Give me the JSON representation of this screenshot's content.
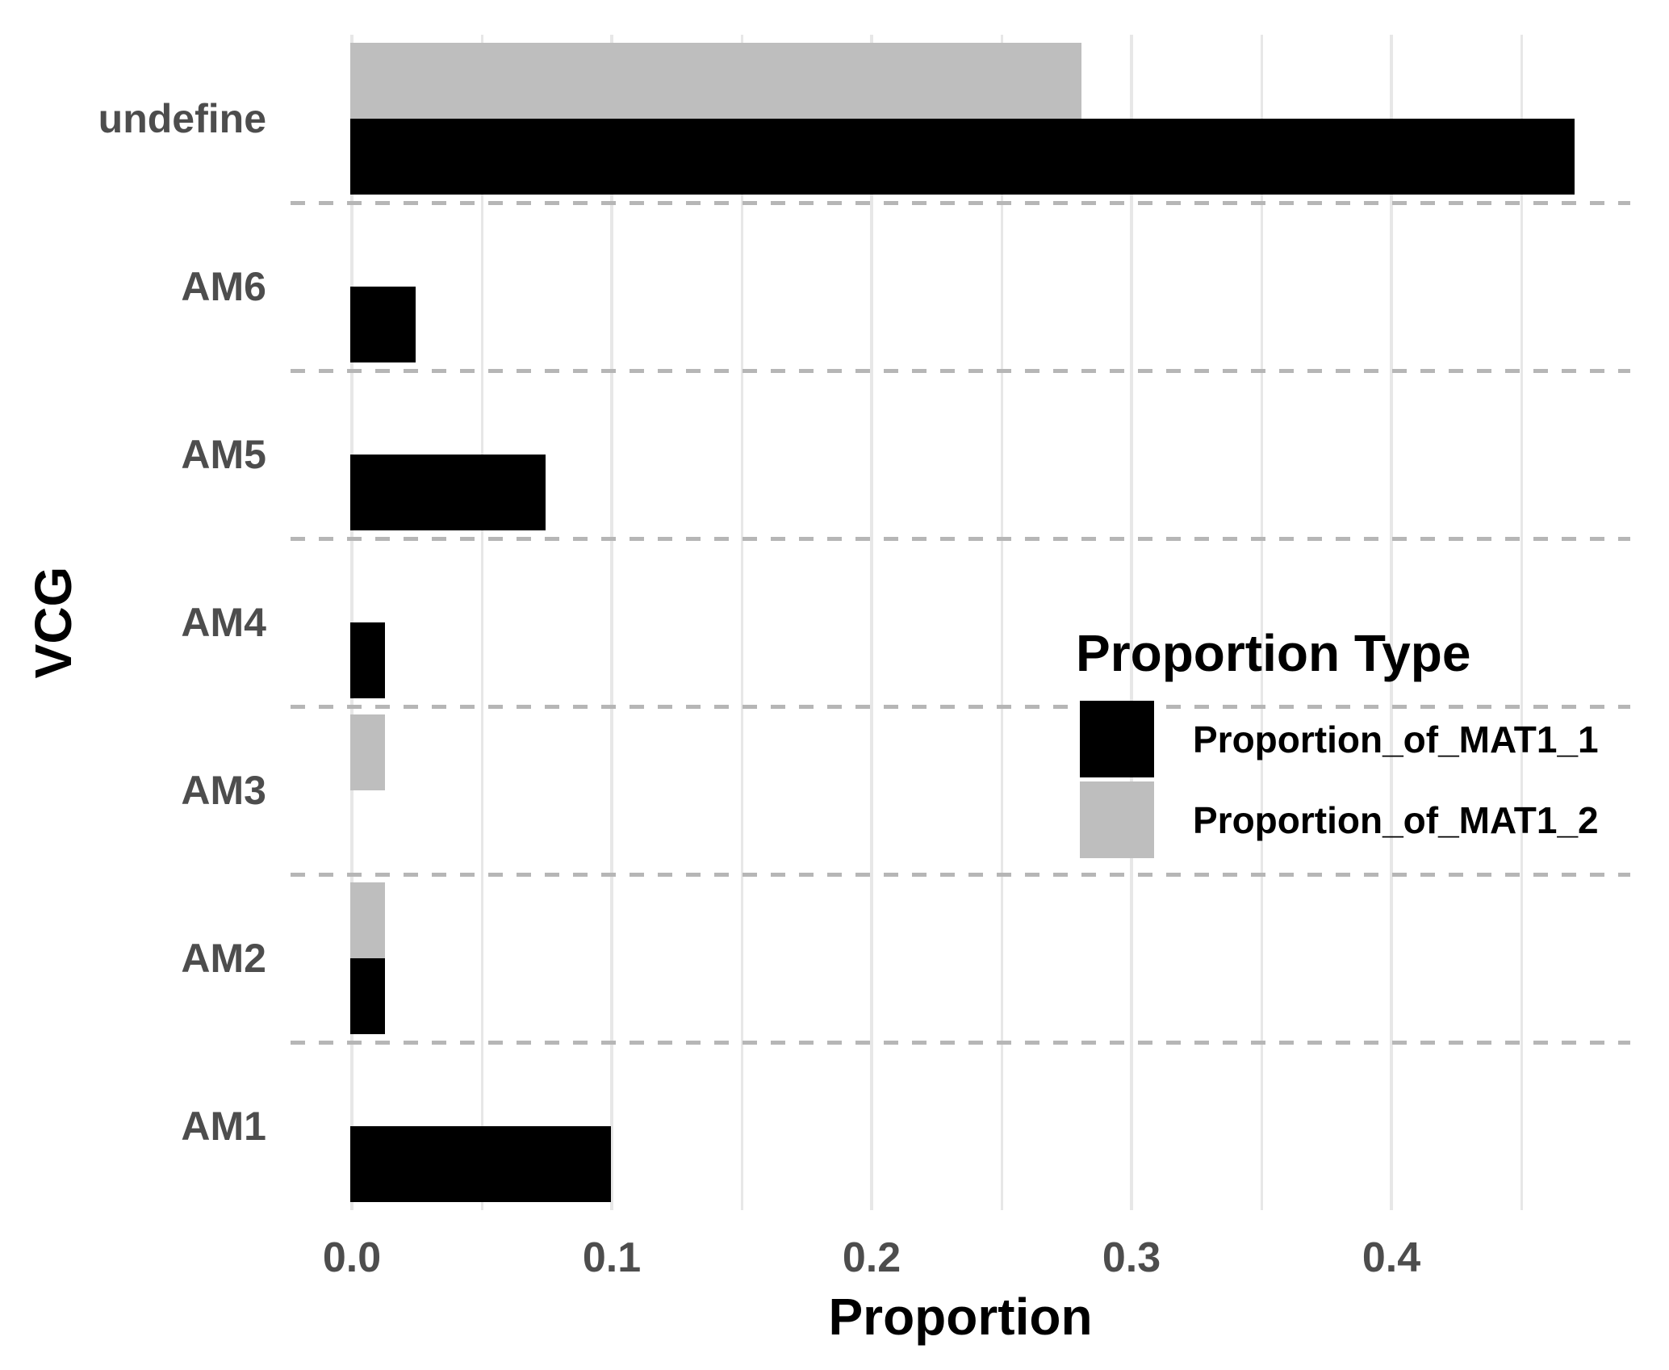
{
  "figure": {
    "background": "#FFFFFF"
  },
  "chart_data": {
    "type": "bar",
    "orientation": "horizontal",
    "title": "",
    "xlabel": "Proportion",
    "ylabel": "VCG",
    "categories": [
      "undefine",
      "AM6",
      "AM5",
      "AM4",
      "AM3",
      "AM2",
      "AM1"
    ],
    "series": [
      {
        "name": "Proportion_of_MAT1_1",
        "color": "#000000",
        "values": [
          0.47,
          0.024,
          0.074,
          0.012,
          0,
          0.012,
          0.099
        ]
      },
      {
        "name": "Proportion_of_MAT1_2",
        "color": "#BEBEBE",
        "values": [
          0.28,
          0,
          0,
          0,
          0.012,
          0.012,
          0
        ]
      }
    ],
    "x_ticks": [
      0,
      0.1,
      0.2,
      0.3,
      0.4
    ],
    "x_tick_labels": [
      "0.0",
      "0.1",
      "0.2",
      "0.3",
      "0.4"
    ],
    "x_minor_step": 0.05,
    "xlim": [
      -0.024,
      0.492
    ],
    "grid": "vertical-gridlines-with-dashed-row-separators",
    "legend": {
      "title": "Proportion Type",
      "position": "inside-right",
      "entries": [
        {
          "label": "Proportion_of_MAT1_1",
          "color": "#000000"
        },
        {
          "label": "Proportion_of_MAT1_2",
          "color": "#BEBEBE"
        }
      ]
    }
  },
  "colors": {
    "bar_black": "#000000",
    "bar_grey": "#BEBEBE",
    "gridline": "#E7E7E7",
    "separator": "#B6B6B6",
    "tick_text": "#4D4D4D",
    "title_text": "#000000"
  }
}
